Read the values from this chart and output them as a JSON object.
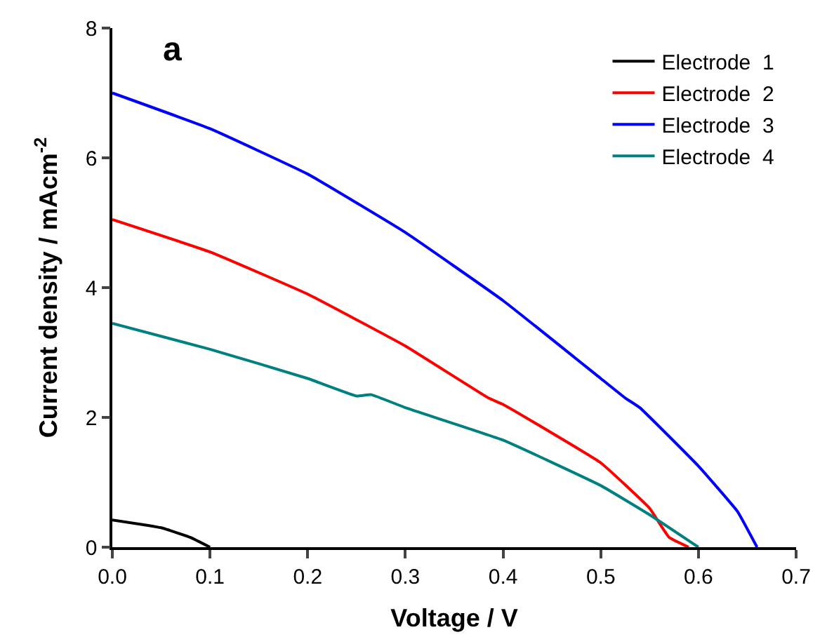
{
  "chart_data": {
    "type": "line",
    "title": "a",
    "xlabel": "Voltage / V",
    "ylabel": "Current density / mAcm$^{-2}$",
    "xlim": [
      0,
      0.7
    ],
    "ylim": [
      0,
      8
    ],
    "xticks": [
      {
        "value": 0,
        "label": "0.0"
      },
      0.1,
      0.2,
      0.3,
      0.4,
      0.5,
      0.6,
      0.7
    ],
    "yticks": [
      0,
      2,
      4,
      6,
      8
    ],
    "legend": "top right",
    "marker": "none",
    "line_style": "solid",
    "series": [
      {
        "name": "Electrode  1",
        "color": "#000000",
        "x": [
          0,
          0.05,
          0.08,
          0.1
        ],
        "values": [
          0.42,
          0.3,
          0.15,
          0
        ]
      },
      {
        "name": "Electrode  2",
        "color": "#ff0000",
        "x": [
          0,
          0.1,
          0.2,
          0.3,
          0.385,
          0.4,
          0.5,
          0.55,
          0.57,
          0.59
        ],
        "values": [
          5.05,
          4.55,
          3.9,
          3.1,
          2.3,
          2.2,
          1.3,
          0.6,
          0.15,
          0
        ]
      },
      {
        "name": "Electrode  3",
        "color": "#0000ff",
        "x": [
          0,
          0.1,
          0.2,
          0.3,
          0.4,
          0.5,
          0.525,
          0.54,
          0.6,
          0.64,
          0.66
        ],
        "values": [
          7.0,
          6.45,
          5.75,
          4.85,
          3.8,
          2.6,
          2.3,
          2.15,
          1.25,
          0.55,
          0
        ]
      },
      {
        "name": "Electrode  4",
        "color": "#008080",
        "x": [
          0,
          0.1,
          0.2,
          0.25,
          0.265,
          0.3,
          0.4,
          0.5,
          0.55,
          0.6
        ],
        "values": [
          3.45,
          3.05,
          2.6,
          2.33,
          2.35,
          2.15,
          1.65,
          0.95,
          0.5,
          0
        ]
      }
    ]
  }
}
